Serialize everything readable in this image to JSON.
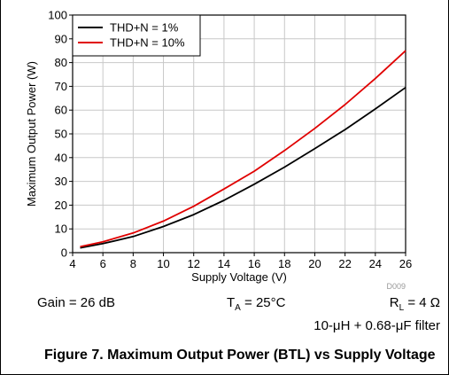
{
  "chart_data": {
    "type": "line",
    "title": "",
    "xlabel": "Supply Voltage (V)",
    "ylabel": "Maximum Output Power (W)",
    "xlim": [
      4,
      26
    ],
    "ylim": [
      0,
      100
    ],
    "xticks": [
      4,
      6,
      8,
      10,
      12,
      14,
      16,
      18,
      20,
      22,
      24,
      26
    ],
    "yticks": [
      0,
      10,
      20,
      30,
      40,
      50,
      60,
      70,
      80,
      90,
      100
    ],
    "grid": true,
    "legend_position": "top-left",
    "series": [
      {
        "name": "THD+N = 1%",
        "color": "#000000",
        "x": [
          4.5,
          6,
          8,
          10,
          12,
          14,
          16,
          18,
          20,
          22,
          24,
          26
        ],
        "y": [
          2,
          3.8,
          6.8,
          11,
          16,
          22,
          28.8,
          36,
          43.8,
          51.8,
          60.5,
          69.5
        ]
      },
      {
        "name": "THD+N = 10%",
        "color": "#e00000",
        "x": [
          4.5,
          6,
          8,
          10,
          12,
          14,
          16,
          18,
          20,
          22,
          24,
          26
        ],
        "y": [
          2.5,
          4.6,
          8.3,
          13.3,
          19.5,
          26.8,
          34.3,
          43,
          52.3,
          62.3,
          73.3,
          85
        ]
      }
    ],
    "annotations": [
      "D009"
    ]
  },
  "conditions": {
    "gain": "Gain = 26 dB",
    "ta_main": "T",
    "ta_sub": "A",
    "ta_rest": " = 25°C",
    "rl_main": "R",
    "rl_sub": "L",
    "rl_rest": " = 4 Ω",
    "filter": "10-μH + 0.68-μF filter"
  },
  "caption": "Figure 7. Maximum Output Power (BTL) vs Supply Voltage"
}
